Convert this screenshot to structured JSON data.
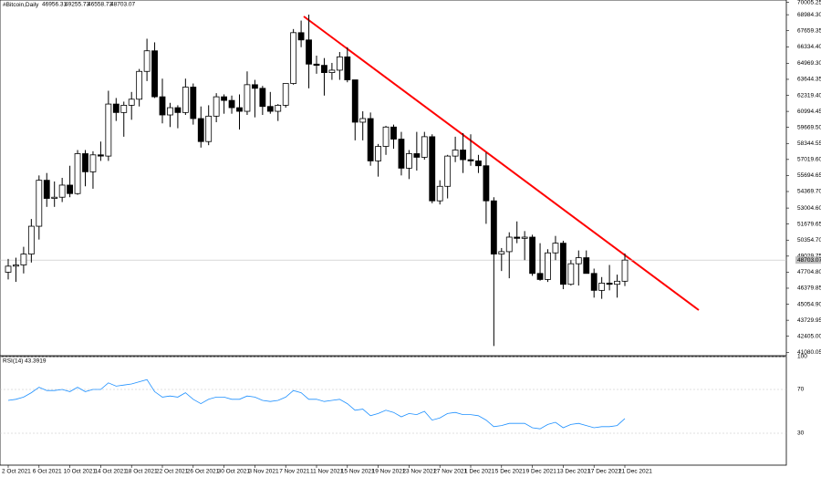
{
  "chart_data": {
    "type": "candlestick",
    "title": "#Bitcoin,Daily",
    "categories": [
      "2 Oct 2021",
      null,
      null,
      null,
      "6 Oct 2021",
      null,
      null,
      null,
      "10 Oct 2021",
      null,
      null,
      null,
      "14 Oct 2021",
      null,
      null,
      null,
      "18 Oct 2021",
      null,
      null,
      null,
      "22 Oct 2021",
      null,
      null,
      null,
      "26 Oct 2021",
      null,
      null,
      null,
      "30 Oct 2021",
      null,
      null,
      null,
      "3 Nov 2021",
      null,
      null,
      null,
      "7 Nov 2021",
      null,
      null,
      null,
      "11 Nov 2021",
      null,
      null,
      null,
      "15 Nov 2021",
      null,
      null,
      null,
      "19 Nov 2021",
      null,
      null,
      null,
      "23 Nov 2021",
      null,
      null,
      null,
      "27 Nov 2021",
      null,
      null,
      null,
      "1 Dec 2021",
      null,
      null,
      null,
      "5 Dec 2021",
      null,
      null,
      null,
      "9 Dec 2021",
      null,
      null,
      null,
      "13 Dec 2021",
      null,
      null,
      null,
      "17 Dec 2021",
      null,
      null,
      null,
      "21 Dec 2021"
    ],
    "open": [
      47700,
      48200,
      48300,
      49200,
      51500,
      55300,
      53800,
      53900,
      54900,
      54200,
      57500,
      56000,
      57400,
      57300,
      61600,
      60900,
      61500,
      62000,
      64300,
      66000,
      62200,
      60700,
      61300,
      60900,
      63000,
      60400,
      58500,
      60600,
      62200,
      61900,
      61300,
      61000,
      63200,
      62900,
      61400,
      61000,
      61500,
      63300,
      67500,
      66900,
      64900,
      64800,
      64200,
      64400,
      65500,
      63600,
      60100,
      60400,
      56900,
      58100,
      59700,
      58700,
      56300,
      57500,
      57200,
      58900,
      53600,
      54800,
      57300,
      57800,
      57000,
      56900,
      56500,
      53600,
      49200,
      49400,
      50600,
      50500,
      50600,
      47600,
      47100,
      49300,
      50100,
      46700,
      48400,
      48900,
      47600,
      46200,
      46800,
      46700,
      46956.31
    ],
    "high": [
      48800,
      48900,
      49800,
      52100,
      55700,
      55900,
      55200,
      55500,
      56500,
      57800,
      57800,
      57700,
      58500,
      62700,
      62100,
      61800,
      62600,
      64500,
      67000,
      66700,
      63700,
      61700,
      61500,
      63700,
      63300,
      61400,
      61500,
      62500,
      62400,
      62300,
      62400,
      64300,
      63600,
      63100,
      62600,
      61600,
      63300,
      67800,
      68500,
      68990,
      65600,
      65400,
      65000,
      65900,
      66300,
      63600,
      61000,
      60900,
      58300,
      59800,
      59900,
      59300,
      57800,
      59300,
      59300,
      59100,
      55300,
      57400,
      58900,
      59200,
      59100,
      57400,
      57600,
      53900,
      49700,
      51000,
      51900,
      51100,
      50800,
      50100,
      49600,
      50700,
      50300,
      48700,
      49500,
      49500,
      48000,
      47300,
      48300,
      47500,
      49255.73
    ],
    "low": [
      47100,
      46900,
      47600,
      48500,
      50400,
      53100,
      53100,
      53500,
      53900,
      54100,
      54800,
      54600,
      56900,
      56900,
      60200,
      58900,
      60300,
      61400,
      63500,
      62100,
      60000,
      59700,
      59600,
      60700,
      59900,
      58000,
      58200,
      60100,
      60800,
      60800,
      59500,
      60700,
      60500,
      60700,
      60800,
      60200,
      61300,
      63200,
      66300,
      62900,
      64100,
      62300,
      63600,
      63600,
      63400,
      58600,
      58600,
      56500,
      55600,
      57400,
      57900,
      55700,
      55400,
      56100,
      57000,
      53400,
      53300,
      53800,
      56800,
      55900,
      56500,
      55900,
      51700,
      41600,
      47800,
      47200,
      50100,
      48700,
      47400,
      47000,
      46900,
      48700,
      46300,
      46600,
      46600,
      47600,
      45600,
      45500,
      46200,
      45600,
      46558.73
    ],
    "close": [
      48200,
      48300,
      49200,
      51500,
      55300,
      53800,
      53900,
      54900,
      54200,
      57500,
      56000,
      57400,
      57300,
      61600,
      60900,
      61500,
      62000,
      64300,
      66000,
      62200,
      60700,
      61300,
      60900,
      63000,
      60400,
      58500,
      60600,
      62200,
      61900,
      61300,
      61000,
      63200,
      62900,
      61400,
      61000,
      61500,
      63300,
      67500,
      66900,
      64900,
      64800,
      64200,
      64400,
      65500,
      63600,
      60100,
      60400,
      56900,
      58100,
      59700,
      58700,
      56300,
      57500,
      57200,
      58900,
      53600,
      54800,
      57300,
      57800,
      57000,
      56900,
      56500,
      53600,
      49200,
      49400,
      50600,
      50500,
      50600,
      47600,
      47100,
      49300,
      50100,
      46700,
      48400,
      48900,
      47600,
      46200,
      46800,
      46700,
      46956.31,
      48703.07
    ],
    "up_color": "#ffffff",
    "down_color": "#000000",
    "ylim": [
      40800,
      70200
    ],
    "yticks": [
      70005.25,
      {
        "value": 68984.3,
        "label": "68984.30"
      },
      67659.35,
      {
        "value": 66334.4,
        "label": "66334.40"
      },
      {
        "value": 64969.3,
        "label": "64969.30"
      },
      63644.35,
      {
        "value": 62319.4,
        "label": "62319.40"
      },
      60994.45,
      {
        "value": 59669.5,
        "label": "59669.50"
      },
      58344.55,
      {
        "value": 57019.6,
        "label": "57019.60"
      },
      55694.65,
      {
        "value": 54369.7,
        "label": "54369.70"
      },
      {
        "value": 53004.6,
        "label": "53004.60"
      },
      51679.65,
      {
        "value": 50354.7,
        "label": "50354.70"
      },
      49029.75,
      {
        "value": 47704.8,
        "label": "47704.80"
      },
      46379.85,
      {
        "value": 45054.9,
        "label": "45054.90"
      },
      43729.95,
      {
        "value": 42405,
        "label": "42405.00"
      },
      41080.05
    ],
    "indicator": {
      "type": "line",
      "label": "RSI(14)",
      "color": "#1e90ff",
      "values": [
        60,
        61,
        63,
        67,
        72,
        69,
        69,
        70,
        68,
        72,
        68,
        70,
        70,
        76,
        73,
        74,
        75,
        77,
        79,
        68,
        63,
        64,
        63,
        67,
        61,
        57,
        61,
        63,
        63,
        61,
        61,
        64,
        63,
        60,
        59,
        60,
        63,
        69,
        67,
        61,
        61,
        59,
        60,
        61,
        57,
        51,
        52,
        46,
        48,
        51,
        49,
        45,
        48,
        47,
        50,
        42,
        44,
        48,
        49,
        47,
        47,
        46,
        42,
        36,
        37,
        39,
        39,
        39,
        35,
        34,
        38,
        40,
        35,
        38,
        39,
        37,
        35,
        36,
        36,
        37,
        43.3919
      ],
      "ylim": [
        0,
        100
      ],
      "yticks": [
        100,
        70,
        30
      ]
    }
  }
}
